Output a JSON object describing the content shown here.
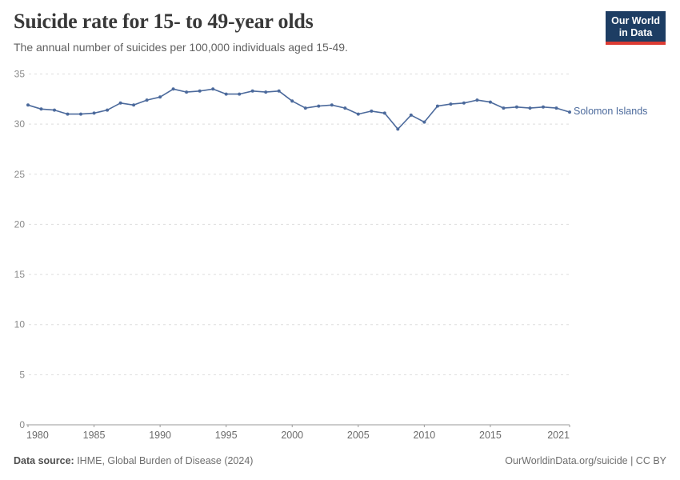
{
  "header": {
    "title": "Suicide rate for 15- to 49-year olds",
    "subtitle": "The annual number of suicides per 100,000 individuals aged 15-49.",
    "logo": {
      "line1": "Our World",
      "line2": "in Data"
    }
  },
  "chart_data": {
    "type": "line",
    "title": "Suicide rate for 15- to 49-year olds",
    "subtitle": "The annual number of suicides per 100,000 individuals aged 15-49.",
    "xlabel": "",
    "ylabel": "",
    "xlim": [
      1980,
      2021
    ],
    "ylim": [
      0,
      35
    ],
    "grid": "horizontal-dashed",
    "legend_position": "end-of-line-label",
    "x": [
      1980,
      1981,
      1982,
      1983,
      1984,
      1985,
      1986,
      1987,
      1988,
      1989,
      1990,
      1991,
      1992,
      1993,
      1994,
      1995,
      1996,
      1997,
      1998,
      1999,
      2000,
      2001,
      2002,
      2003,
      2004,
      2005,
      2006,
      2007,
      2008,
      2009,
      2010,
      2011,
      2012,
      2013,
      2014,
      2015,
      2016,
      2017,
      2018,
      2019,
      2020,
      2021
    ],
    "series": [
      {
        "name": "Solomon Islands",
        "color": "#4c6a9c",
        "values": [
          31.9,
          31.5,
          31.4,
          31.0,
          31.0,
          31.1,
          31.4,
          32.1,
          31.9,
          32.4,
          32.7,
          33.5,
          33.2,
          33.3,
          33.5,
          33.0,
          33.0,
          33.3,
          33.2,
          33.3,
          32.3,
          31.6,
          31.8,
          31.9,
          31.6,
          31.0,
          31.3,
          31.1,
          29.5,
          30.9,
          30.2,
          31.8,
          32.0,
          32.1,
          32.4,
          32.2,
          31.6,
          31.7,
          31.6,
          31.7,
          31.6,
          31.2
        ]
      }
    ],
    "yticks": [
      0,
      5,
      10,
      15,
      20,
      25,
      30,
      35
    ],
    "xticks": [
      1980,
      1985,
      1990,
      1995,
      2000,
      2005,
      2010,
      2015,
      2021
    ]
  },
  "colors": {
    "line": "#4c6a9c",
    "gridline": "#dddddd",
    "axis": "#999999",
    "y_tick_label": "#8a8a8a",
    "x_tick_label": "#6b6b6b",
    "logo_bg": "#1d3d63",
    "logo_red": "#dc3b33"
  },
  "footer": {
    "source_label": "Data source:",
    "source_text": " IHME, Global Burden of Disease (2024)",
    "attribution": "OurWorldinData.org/suicide | CC BY"
  }
}
